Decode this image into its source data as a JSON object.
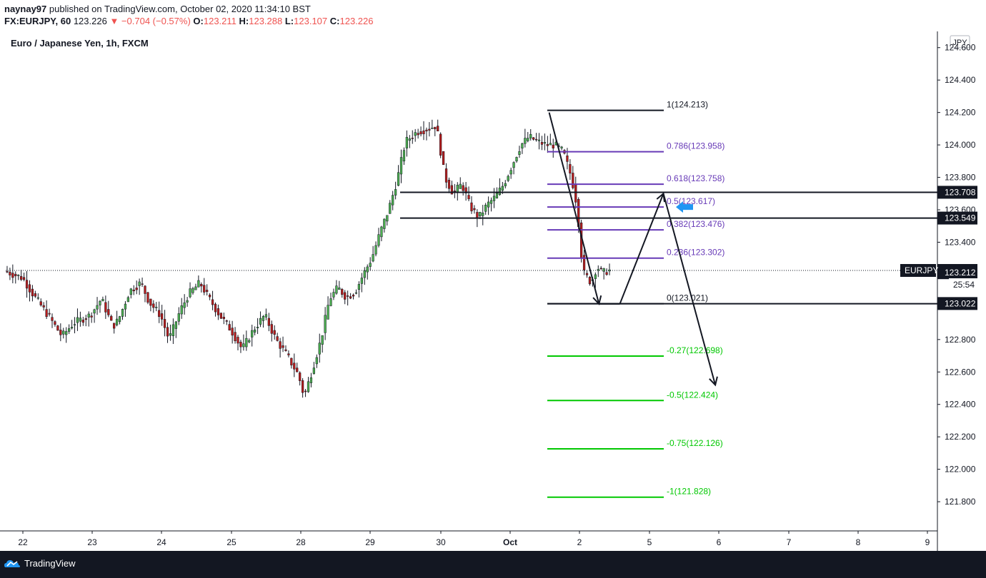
{
  "header": {
    "publisher": "naynay97",
    "published_text": "published on TradingView.com, October 02, 2020 11:34:10 BST",
    "symbol": "FX:EURJPY, 60",
    "last": "123.226",
    "change": "▼ −0.704 (−0.57%)",
    "o_label": "O:",
    "o_value": "123.211",
    "h_label": "H:",
    "h_value": "123.288",
    "l_label": "L:",
    "l_value": "123.107",
    "c_label": "C:",
    "c_value": "123.226"
  },
  "footer": {
    "brand": "TradingView"
  },
  "chart_data": {
    "type": "candlestick",
    "title": "Euro / Japanese Yen, 1h, FXCM",
    "currency_badge": "JPY",
    "symbol_label": "EURJPY",
    "countdown": "25:54",
    "ylim": [
      121.62,
      124.7
    ],
    "y_ticks": [
      "124.600",
      "124.400",
      "124.200",
      "124.000",
      "123.800",
      "123.600",
      "123.400",
      "122.800",
      "122.600",
      "122.400",
      "122.200",
      "122.000",
      "121.800"
    ],
    "x_ticks": [
      "22",
      "23",
      "24",
      "25",
      "28",
      "29",
      "30",
      "Oct",
      "2",
      "5",
      "6",
      "7",
      "8",
      "9"
    ],
    "price_tags": [
      {
        "label": "123.708",
        "value": 123.708,
        "style": "dark"
      },
      {
        "label": "123.549",
        "value": 123.549,
        "style": "dark"
      },
      {
        "label": "123.226",
        "value": 123.226,
        "style": "dark"
      },
      {
        "label": "123.212",
        "value": 123.212,
        "style": "dark"
      },
      {
        "label": "123.022",
        "value": 123.022,
        "style": "dark"
      }
    ],
    "horizontal_lines": [
      {
        "value": 123.708,
        "from": "29",
        "to": "end"
      },
      {
        "value": 123.549,
        "from": "29",
        "to": "end"
      },
      {
        "value": 123.021,
        "from": "Oct",
        "to": "end"
      }
    ],
    "fib_levels": [
      {
        "label": "1(124.213)",
        "value": 124.213,
        "color": "#131722"
      },
      {
        "label": "0.786(123.958)",
        "value": 123.958,
        "color": "#673ab7"
      },
      {
        "label": "0.618(123.758)",
        "value": 123.758,
        "color": "#673ab7"
      },
      {
        "label": "0.5(123.617)",
        "value": 123.617,
        "color": "#673ab7"
      },
      {
        "label": "0.382(123.476)",
        "value": 123.476,
        "color": "#673ab7"
      },
      {
        "label": "0.236(123.302)",
        "value": 123.302,
        "color": "#673ab7"
      },
      {
        "label": "0(123.021)",
        "value": 123.021,
        "color": "#131722"
      },
      {
        "label": "-0.27(122.698)",
        "value": 122.698,
        "color": "#00c800"
      },
      {
        "label": "-0.5(122.424)",
        "value": 122.424,
        "color": "#00c800"
      },
      {
        "label": "-0.75(122.126)",
        "value": 122.126,
        "color": "#00c800"
      },
      {
        "label": "-1(121.828)",
        "value": 121.828,
        "color": "#00c800"
      }
    ],
    "path_points": [
      {
        "t": "Oct+0.56",
        "value": 124.2
      },
      {
        "t": "2+0.28",
        "value": 123.02
      },
      {
        "t": "2+0.58",
        "value": 123.02
      },
      {
        "t": "5+0.20",
        "value": 123.7
      },
      {
        "t": "6-0.05",
        "value": 122.52
      }
    ],
    "price_path": [
      [
        0,
        123.22
      ],
      [
        6,
        123.18
      ],
      [
        10,
        123.07
      ],
      [
        15,
        122.95
      ],
      [
        20,
        122.82
      ],
      [
        24,
        122.9
      ],
      [
        30,
        122.95
      ],
      [
        34,
        123.05
      ],
      [
        38,
        122.88
      ],
      [
        40,
        122.92
      ],
      [
        44,
        123.1
      ],
      [
        48,
        123.15
      ],
      [
        51,
        123.03
      ],
      [
        55,
        122.95
      ],
      [
        58,
        122.8
      ],
      [
        62,
        122.98
      ],
      [
        65,
        123.08
      ],
      [
        69,
        123.15
      ],
      [
        72,
        123.06
      ],
      [
        76,
        122.95
      ],
      [
        80,
        122.86
      ],
      [
        84,
        122.74
      ],
      [
        88,
        122.86
      ],
      [
        92,
        122.95
      ],
      [
        96,
        122.8
      ],
      [
        100,
        122.7
      ],
      [
        104,
        122.58
      ],
      [
        106,
        122.45
      ],
      [
        108,
        122.56
      ],
      [
        112,
        122.8
      ],
      [
        115,
        123.05
      ],
      [
        118,
        123.12
      ],
      [
        121,
        123.06
      ],
      [
        124,
        123.09
      ],
      [
        127,
        123.2
      ],
      [
        130,
        123.3
      ],
      [
        133,
        123.46
      ],
      [
        136,
        123.6
      ],
      [
        139,
        123.78
      ],
      [
        142,
        124.02
      ],
      [
        146,
        124.08
      ],
      [
        150,
        124.1
      ],
      [
        153,
        124.12
      ],
      [
        156,
        123.8
      ],
      [
        159,
        123.7
      ],
      [
        162,
        123.76
      ],
      [
        165,
        123.62
      ],
      [
        168,
        123.55
      ],
      [
        171,
        123.63
      ],
      [
        174,
        123.68
      ],
      [
        177,
        123.76
      ],
      [
        180,
        123.88
      ],
      [
        183,
        124.0
      ],
      [
        186,
        124.05
      ],
      [
        189,
        124.02
      ],
      [
        192,
        124.0
      ],
      [
        195,
        124.0
      ],
      [
        198,
        123.96
      ],
      [
        201,
        123.8
      ],
      [
        203,
        123.62
      ],
      [
        205,
        123.22
      ],
      [
        208,
        123.15
      ],
      [
        210,
        123.25
      ],
      [
        212,
        123.21
      ],
      [
        214,
        123.226
      ]
    ],
    "candle_count": 215
  }
}
